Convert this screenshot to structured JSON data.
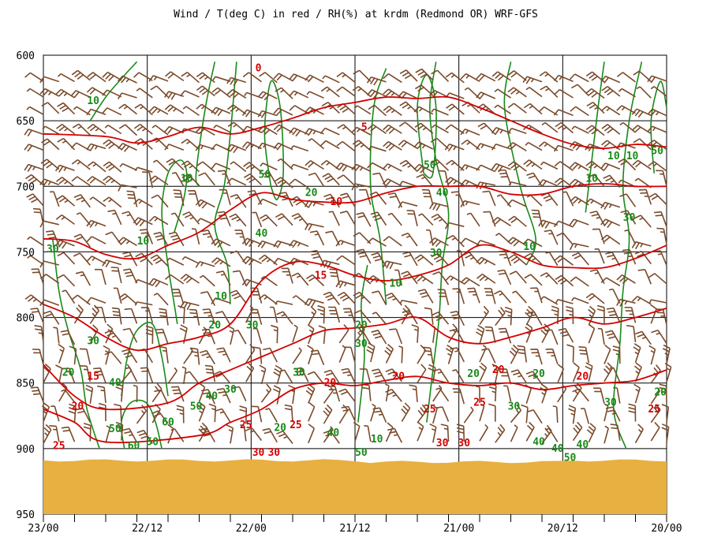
{
  "chart_data": {
    "type": "meteogram",
    "title": "Wind / T(deg C) in red / RH(%) at krdm (Redmond OR)  WRF-GFS",
    "y_axis": {
      "ylim": [
        600,
        950
      ],
      "inverted": true,
      "tick_labels": [
        "600",
        "650",
        "700",
        "750",
        "800",
        "850",
        "900",
        "950"
      ]
    },
    "x_axis": {
      "tick_labels": [
        "23/00",
        "22/12",
        "22/00",
        "21/12",
        "21/00",
        "20/12",
        "20/00"
      ]
    },
    "grid": true,
    "colors": {
      "temperature": "#d40000",
      "rh": "#188a18",
      "wind": "#7a4a2a",
      "ground": "#e8b040"
    },
    "temperature_contours": [
      {
        "label": "0",
        "points": [
          [
            0,
            660
          ],
          [
            2,
            662
          ],
          [
            3,
            667
          ],
          [
            4,
            662
          ],
          [
            5,
            655
          ],
          [
            6,
            660
          ],
          [
            7,
            655
          ],
          [
            8,
            648
          ],
          [
            9,
            640
          ],
          [
            10,
            636
          ],
          [
            11,
            632
          ],
          [
            12,
            633
          ],
          [
            13,
            632
          ],
          [
            14,
            640
          ],
          [
            15,
            650
          ],
          [
            16,
            660
          ],
          [
            17,
            668
          ],
          [
            18,
            671
          ],
          [
            19,
            668
          ],
          [
            20,
            670
          ]
        ]
      },
      {
        "label": "5",
        "points": [
          [
            0,
            740
          ],
          [
            1,
            742
          ],
          [
            2,
            752
          ],
          [
            3,
            755
          ],
          [
            4,
            745
          ],
          [
            5,
            735
          ],
          [
            6,
            718
          ],
          [
            7,
            705
          ],
          [
            8,
            710
          ],
          [
            9,
            712
          ],
          [
            10,
            712
          ],
          [
            11,
            705
          ],
          [
            12,
            700
          ],
          [
            13,
            700
          ],
          [
            14,
            700
          ],
          [
            15,
            706
          ],
          [
            16,
            706
          ],
          [
            17,
            700
          ],
          [
            18,
            698
          ],
          [
            19,
            700
          ],
          [
            20,
            700
          ]
        ]
      },
      {
        "label": "10",
        "points": [
          [
            0,
            790
          ],
          [
            1,
            800
          ],
          [
            2,
            815
          ],
          [
            3,
            825
          ],
          [
            4,
            820
          ],
          [
            5,
            815
          ],
          [
            6,
            805
          ],
          [
            7,
            772
          ],
          [
            8,
            758
          ],
          [
            9,
            760
          ],
          [
            10,
            768
          ],
          [
            11,
            772
          ],
          [
            12,
            768
          ],
          [
            13,
            760
          ],
          [
            14,
            745
          ],
          [
            15,
            750
          ],
          [
            16,
            760
          ],
          [
            17,
            762
          ],
          [
            18,
            762
          ],
          [
            19,
            755
          ],
          [
            20,
            745
          ]
        ]
      },
      {
        "label": "15",
        "points": [
          [
            0,
            836
          ],
          [
            1,
            860
          ],
          [
            2,
            870
          ],
          [
            4,
            865
          ],
          [
            5,
            850
          ],
          [
            6,
            840
          ],
          [
            7,
            830
          ],
          [
            8,
            820
          ],
          [
            9,
            810
          ],
          [
            10,
            808
          ],
          [
            11,
            805
          ],
          [
            12,
            800
          ],
          [
            13,
            815
          ],
          [
            14,
            820
          ],
          [
            15,
            815
          ],
          [
            16,
            808
          ],
          [
            17,
            800
          ],
          [
            18,
            805
          ],
          [
            19,
            800
          ],
          [
            20,
            793
          ]
        ]
      },
      {
        "label": "20",
        "points": [
          [
            0,
            870
          ],
          [
            1,
            880
          ],
          [
            2,
            895
          ],
          [
            5,
            890
          ],
          [
            6,
            880
          ],
          [
            7,
            870
          ],
          [
            8,
            855
          ],
          [
            9,
            850
          ],
          [
            10,
            852
          ],
          [
            11,
            848
          ],
          [
            12,
            845
          ],
          [
            13,
            850
          ],
          [
            14,
            852
          ],
          [
            15,
            850
          ],
          [
            16,
            855
          ],
          [
            17,
            852
          ],
          [
            18,
            850
          ],
          [
            19,
            848
          ],
          [
            20,
            840
          ]
        ]
      }
    ],
    "temperature_labels": [
      {
        "text": "0",
        "x": 6.9,
        "p": 610
      },
      {
        "text": "5",
        "x": 10.3,
        "p": 655
      },
      {
        "text": "10",
        "x": 9.4,
        "p": 712
      },
      {
        "text": "15",
        "x": 8.9,
        "p": 768
      },
      {
        "text": "15",
        "x": 1.6,
        "p": 845
      },
      {
        "text": "20",
        "x": 1.1,
        "p": 868
      },
      {
        "text": "20",
        "x": 9.2,
        "p": 850
      },
      {
        "text": "20",
        "x": 11.4,
        "p": 845
      },
      {
        "text": "20",
        "x": 14.6,
        "p": 840
      },
      {
        "text": "20",
        "x": 17.3,
        "p": 845
      },
      {
        "text": "25",
        "x": 0.5,
        "p": 898
      },
      {
        "text": "25",
        "x": 6.5,
        "p": 882
      },
      {
        "text": "25",
        "x": 8.1,
        "p": 882
      },
      {
        "text": "25",
        "x": 12.4,
        "p": 870
      },
      {
        "text": "25",
        "x": 14.0,
        "p": 865
      },
      {
        "text": "25",
        "x": 19.6,
        "p": 870
      },
      {
        "text": "30",
        "x": 6.9,
        "p": 903
      },
      {
        "text": "30",
        "x": 7.4,
        "p": 903
      },
      {
        "text": "30",
        "x": 12.8,
        "p": 896
      },
      {
        "text": "30",
        "x": 13.5,
        "p": 896
      }
    ],
    "rh_contours": [
      {
        "label": "10",
        "points": [
          [
            1.5,
            650
          ],
          [
            2,
            632
          ],
          [
            2.5,
            618
          ],
          [
            3,
            605
          ]
        ]
      },
      {
        "label": "10",
        "points": [
          [
            4.2,
            735
          ],
          [
            4.5,
            710
          ],
          [
            4.6,
            690
          ],
          [
            4.4,
            680
          ],
          [
            4.0,
            690
          ],
          [
            3.8,
            720
          ],
          [
            4.0,
            760
          ],
          [
            4.2,
            790
          ],
          [
            4.3,
            805
          ]
        ]
      },
      {
        "label": "10",
        "points": [
          [
            5.0,
            700
          ],
          [
            4.9,
            690
          ],
          [
            5.2,
            640
          ],
          [
            5.5,
            605
          ]
        ]
      },
      {
        "label": "10",
        "points": [
          [
            6.0,
            790
          ],
          [
            5.9,
            760
          ],
          [
            5.5,
            730
          ],
          [
            5.8,
            700
          ],
          [
            6.0,
            660
          ],
          [
            6.2,
            605
          ]
        ]
      },
      {
        "label": "10",
        "points": [
          [
            11.0,
            790
          ],
          [
            10.8,
            740
          ],
          [
            10.5,
            700
          ],
          [
            10.6,
            640
          ],
          [
            11.0,
            610
          ]
        ]
      },
      {
        "label": "10",
        "points": [
          [
            15.5,
            760
          ],
          [
            15.8,
            740
          ],
          [
            15.3,
            700
          ],
          [
            14.8,
            640
          ],
          [
            15.0,
            605
          ]
        ]
      },
      {
        "label": "10",
        "points": [
          [
            17.4,
            720
          ],
          [
            17.6,
            680
          ],
          [
            17.8,
            640
          ],
          [
            18.0,
            605
          ]
        ]
      },
      {
        "label": "30",
        "points": [
          [
            0.3,
            740
          ],
          [
            0.5,
            780
          ],
          [
            0.8,
            810
          ],
          [
            1.2,
            840
          ],
          [
            1.4,
            870
          ],
          [
            1.8,
            900
          ]
        ]
      },
      {
        "label": "30",
        "points": [
          [
            2.5,
            860
          ],
          [
            2.7,
            830
          ],
          [
            3.0,
            810
          ],
          [
            3.5,
            805
          ],
          [
            3.8,
            830
          ],
          [
            4.0,
            860
          ]
        ]
      },
      {
        "label": "30",
        "points": [
          [
            10.1,
            880
          ],
          [
            10.3,
            830
          ],
          [
            10.2,
            790
          ],
          [
            10.4,
            760
          ]
        ]
      },
      {
        "label": "30",
        "points": [
          [
            12.3,
            880
          ],
          [
            12.5,
            840
          ],
          [
            12.7,
            800
          ],
          [
            12.8,
            760
          ],
          [
            13.0,
            720
          ],
          [
            12.6,
            680
          ],
          [
            12.4,
            640
          ],
          [
            12.6,
            605
          ]
        ]
      },
      {
        "label": "30",
        "points": [
          [
            18.7,
            900
          ],
          [
            18.3,
            870
          ],
          [
            18.5,
            820
          ],
          [
            18.6,
            780
          ],
          [
            18.8,
            740
          ],
          [
            18.6,
            700
          ],
          [
            18.8,
            650
          ],
          [
            19.2,
            605
          ]
        ]
      },
      {
        "label": "50",
        "points": [
          [
            7.3,
            700
          ],
          [
            7.1,
            660
          ],
          [
            7.3,
            620
          ],
          [
            7.6,
            640
          ],
          [
            7.7,
            690
          ],
          [
            7.5,
            710
          ],
          [
            7.3,
            700
          ]
        ]
      },
      {
        "label": "50",
        "points": [
          [
            12.2,
            690
          ],
          [
            12.0,
            640
          ],
          [
            12.3,
            615
          ],
          [
            12.6,
            640
          ],
          [
            12.5,
            690
          ],
          [
            12.2,
            690
          ]
        ]
      },
      {
        "label": "50",
        "points": [
          [
            19.6,
            690
          ],
          [
            19.5,
            650
          ],
          [
            19.8,
            620
          ],
          [
            20.0,
            640
          ]
        ]
      },
      {
        "label": "60",
        "points": [
          [
            2.6,
            900
          ],
          [
            2.5,
            880
          ],
          [
            2.8,
            865
          ],
          [
            3.3,
            865
          ],
          [
            3.6,
            880
          ],
          [
            3.8,
            900
          ]
        ]
      }
    ],
    "rh_labels": [
      {
        "text": "10",
        "x": 1.6,
        "p": 635
      },
      {
        "text": "10",
        "x": 4.6,
        "p": 694
      },
      {
        "text": "10",
        "x": 3.2,
        "p": 742
      },
      {
        "text": "10",
        "x": 5.7,
        "p": 784
      },
      {
        "text": "10",
        "x": 11.3,
        "p": 774
      },
      {
        "text": "10",
        "x": 15.6,
        "p": 746
      },
      {
        "text": "10",
        "x": 17.6,
        "p": 694
      },
      {
        "text": "10",
        "x": 18.9,
        "p": 677
      },
      {
        "text": "10",
        "x": 10.7,
        "p": 893
      },
      {
        "text": "20",
        "x": 8.6,
        "p": 705
      },
      {
        "text": "20",
        "x": 5.5,
        "p": 806
      },
      {
        "text": "20",
        "x": 10.2,
        "p": 806
      },
      {
        "text": "20",
        "x": 13.8,
        "p": 843
      },
      {
        "text": "20",
        "x": 15.9,
        "p": 843
      },
      {
        "text": "20",
        "x": 7.6,
        "p": 884
      },
      {
        "text": "20",
        "x": 19.8,
        "p": 857
      },
      {
        "text": "20",
        "x": 0.8,
        "p": 842
      },
      {
        "text": "30",
        "x": 0.3,
        "p": 748
      },
      {
        "text": "30",
        "x": 1.6,
        "p": 818
      },
      {
        "text": "30",
        "x": 6.7,
        "p": 806
      },
      {
        "text": "30",
        "x": 10.2,
        "p": 820
      },
      {
        "text": "30",
        "x": 12.6,
        "p": 751
      },
      {
        "text": "30",
        "x": 18.8,
        "p": 724
      },
      {
        "text": "30",
        "x": 8.2,
        "p": 842
      },
      {
        "text": "30",
        "x": 6.0,
        "p": 855
      },
      {
        "text": "30",
        "x": 15.1,
        "p": 868
      },
      {
        "text": "30",
        "x": 18.2,
        "p": 865
      },
      {
        "text": "40",
        "x": 2.3,
        "p": 850
      },
      {
        "text": "40",
        "x": 5.4,
        "p": 860
      },
      {
        "text": "40",
        "x": 7.0,
        "p": 736
      },
      {
        "text": "40",
        "x": 12.8,
        "p": 705
      },
      {
        "text": "40",
        "x": 9.3,
        "p": 888
      },
      {
        "text": "40",
        "x": 15.9,
        "p": 895
      },
      {
        "text": "40",
        "x": 16.5,
        "p": 900
      },
      {
        "text": "40",
        "x": 17.3,
        "p": 897
      },
      {
        "text": "50",
        "x": 2.3,
        "p": 885
      },
      {
        "text": "50",
        "x": 4.9,
        "p": 868
      },
      {
        "text": "50",
        "x": 7.1,
        "p": 691
      },
      {
        "text": "50",
        "x": 12.4,
        "p": 684
      },
      {
        "text": "50",
        "x": 19.7,
        "p": 673
      },
      {
        "text": "50",
        "x": 10.2,
        "p": 903
      },
      {
        "text": "50",
        "x": 16.9,
        "p": 907
      },
      {
        "text": "50",
        "x": 3.5,
        "p": 895
      },
      {
        "text": "60",
        "x": 2.9,
        "p": 898
      },
      {
        "text": "60",
        "x": 4.0,
        "p": 880
      },
      {
        "text": "10",
        "x": 18.3,
        "p": 677
      }
    ],
    "ground_top_pressure": 909
  }
}
